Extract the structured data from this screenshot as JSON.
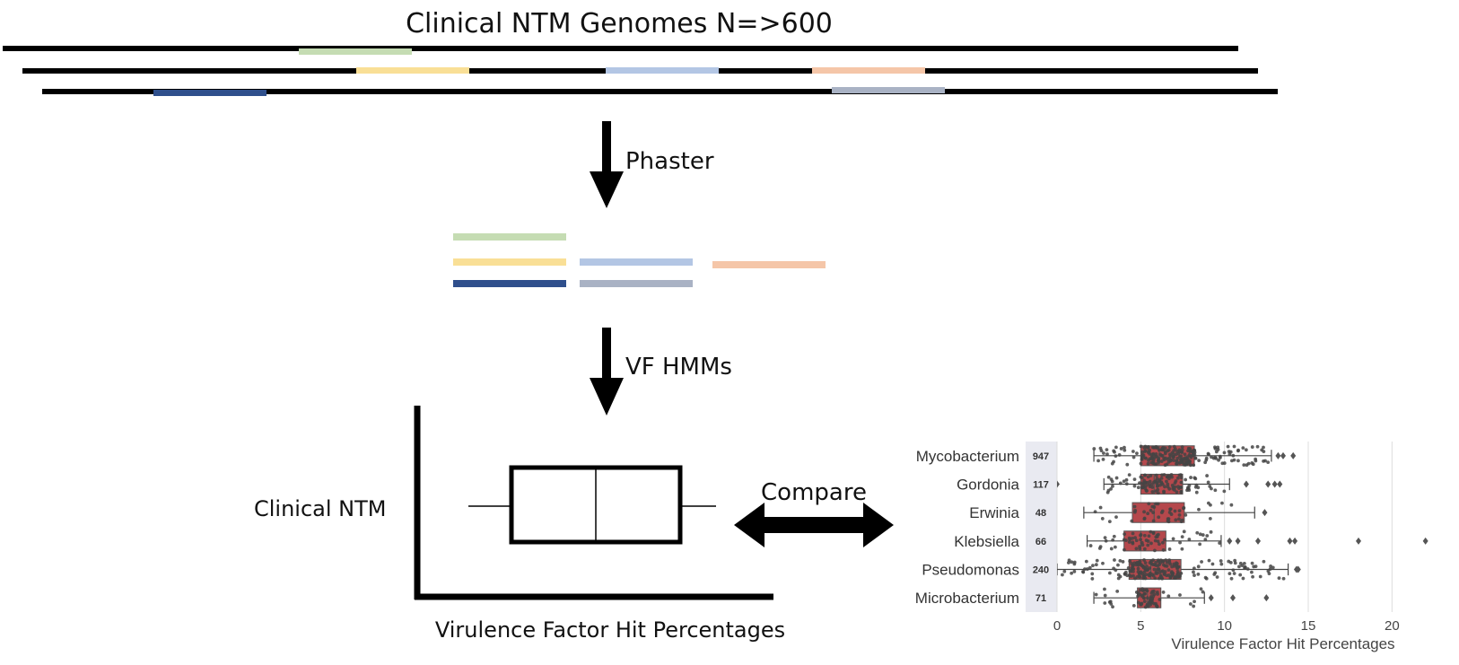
{
  "title": "Clinical NTM Genomes N=>600",
  "steps": [
    {
      "label": "Phaster"
    },
    {
      "label": "VF HMMs"
    }
  ],
  "schematic": {
    "ylabel": "Clinical NTM",
    "xlabel": "Virulence Factor Hit Percentages"
  },
  "compare_label": "Compare",
  "colors": {
    "green": "#c5dcb3",
    "yellow": "#f9df96",
    "light_blue": "#b3c6e4",
    "peach": "#f5c6a8",
    "dark_blue": "#2f4f8c",
    "grey_blue": "#a9b2c4",
    "box_fill": "#b5484c",
    "point": "#444444"
  },
  "chart_data": {
    "type": "box",
    "title": "",
    "xlabel": "Virulence Factor Hit Percentages",
    "ylabel": "",
    "xlim": [
      0,
      22.5
    ],
    "xticks": [
      0,
      5,
      10,
      15,
      20
    ],
    "grid": true,
    "categories": [
      "Mycobacterium",
      "Gordonia",
      "Erwinia",
      "Klebsiella",
      "Pseudomonas",
      "Microbacterium"
    ],
    "counts": [
      947,
      117,
      48,
      66,
      240,
      71
    ],
    "series": [
      {
        "category": "Mycobacterium",
        "n": 947,
        "whisker_low": 2.2,
        "q1": 5.0,
        "median": 6.1,
        "q3": 8.2,
        "whisker_high": 12.8,
        "outliers": [
          13.2,
          13.5,
          14.1
        ]
      },
      {
        "category": "Gordonia",
        "n": 117,
        "whisker_low": 2.8,
        "q1": 5.0,
        "median": 5.8,
        "q3": 7.5,
        "whisker_high": 10.3,
        "outliers": [
          0.0,
          11.3,
          12.6,
          13.0,
          13.3
        ]
      },
      {
        "category": "Erwinia",
        "n": 48,
        "whisker_low": 1.6,
        "q1": 4.5,
        "median": 5.8,
        "q3": 7.6,
        "whisker_high": 11.8,
        "outliers": [
          12.4
        ]
      },
      {
        "category": "Klebsiella",
        "n": 66,
        "whisker_low": 1.8,
        "q1": 4.0,
        "median": 5.0,
        "q3": 6.5,
        "whisker_high": 9.8,
        "outliers": [
          10.3,
          10.8,
          12.0,
          13.9,
          14.2,
          18.0,
          22.0
        ]
      },
      {
        "category": "Pseudomonas",
        "n": 240,
        "whisker_low": 0.0,
        "q1": 4.3,
        "median": 5.6,
        "q3": 7.4,
        "whisker_high": 13.8,
        "outliers": [
          14.3,
          14.4
        ]
      },
      {
        "category": "Microbacterium",
        "n": 71,
        "whisker_low": 2.2,
        "q1": 4.8,
        "median": 5.4,
        "q3": 6.2,
        "whisker_high": 8.8,
        "outliers": [
          9.2,
          10.5,
          12.5
        ]
      }
    ]
  }
}
